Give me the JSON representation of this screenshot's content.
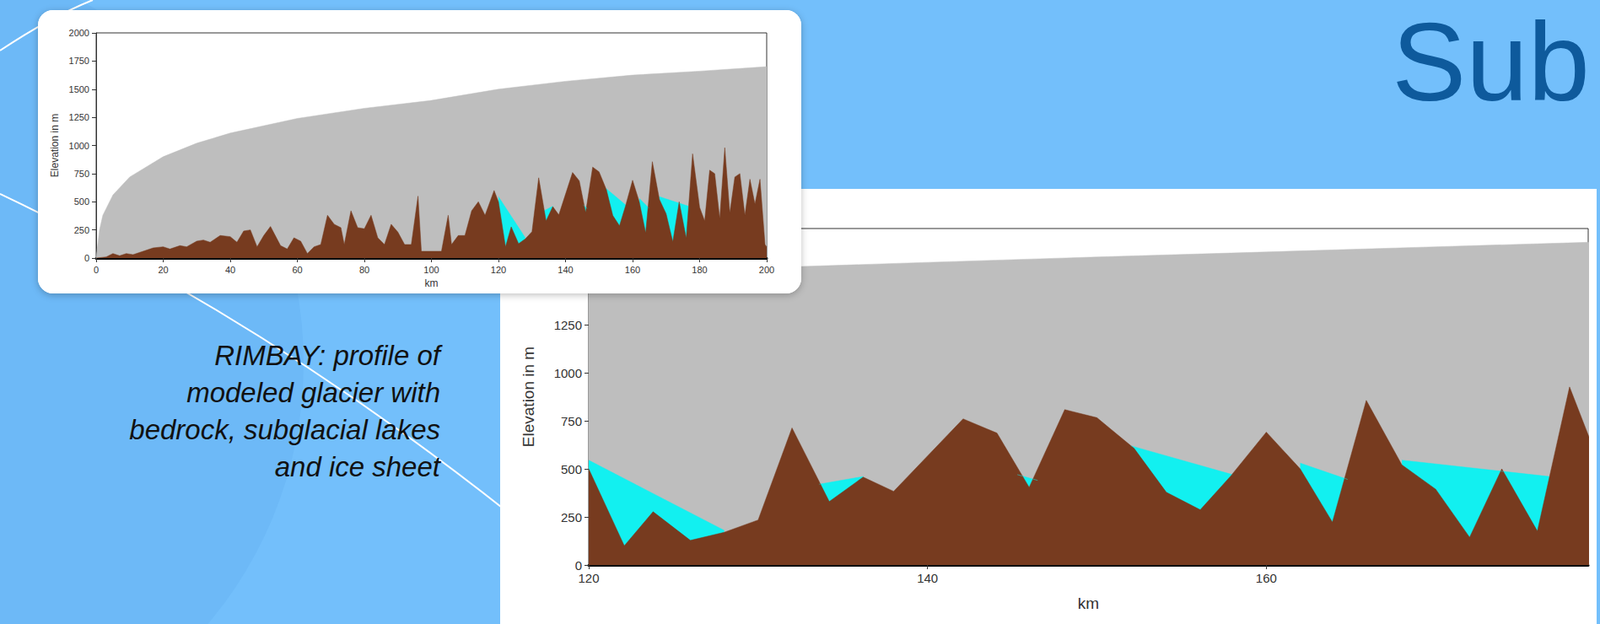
{
  "slide": {
    "title": "Sub",
    "caption": [
      "RIMBAY: profile of",
      "modeled glacier with",
      "bedrock, subglacial lakes",
      "and ice sheet"
    ]
  },
  "chart_data": [
    {
      "type": "area",
      "x_label": "km",
      "y_label": "Elevation in m",
      "xlim": [
        0,
        200
      ],
      "xticks": [
        0,
        20,
        40,
        60,
        80,
        100,
        120,
        140,
        160,
        180,
        200
      ],
      "ylim": [
        0,
        2000
      ],
      "yticks": [
        0,
        250,
        500,
        750,
        1000,
        1250,
        1500,
        1750,
        2000
      ],
      "series": [
        {
          "color": "#bebebe",
          "x": [
            0,
            1,
            2,
            5,
            10,
            20,
            30,
            40,
            60,
            80,
            100,
            120,
            140,
            160,
            180,
            200
          ],
          "values": [
            0,
            250,
            380,
            560,
            720,
            900,
            1020,
            1110,
            1240,
            1330,
            1400,
            1500,
            1570,
            1625,
            1660,
            1700
          ]
        },
        {
          "color": "#12f0f0",
          "x": [
            120,
            128,
            128.5,
            133.6,
            136.2,
            136.5,
            145.3,
            146.5,
            147,
            152,
            158,
            158.5,
            162,
            164.8,
            165,
            168,
            176.7
          ],
          "values": [
            545,
            180,
            null,
            420,
            460,
            null,
            470,
            440,
            null,
            620,
            470,
            null,
            530,
            445,
            null,
            545,
            460
          ]
        },
        {
          "color": "#773b1f",
          "x": [
            0,
            3,
            5,
            7,
            9,
            11,
            14,
            17,
            20,
            22,
            25,
            27,
            30,
            32,
            34,
            37,
            40,
            42,
            44,
            46,
            48,
            50,
            52,
            55,
            57,
            59,
            61,
            63,
            65,
            67,
            69,
            71,
            73,
            74,
            76,
            78,
            80,
            82,
            84,
            86,
            88,
            90,
            92,
            94,
            96,
            97,
            103,
            105,
            106,
            108,
            110,
            112,
            114,
            116,
            118.7,
            120,
            122.1,
            123.8,
            126,
            128,
            130,
            132,
            134.2,
            136.2,
            138,
            142.1,
            144.1,
            146,
            148.1,
            150,
            152.2,
            154.1,
            156.1,
            157.9,
            160,
            162,
            163.9,
            165.9,
            168,
            170,
            172,
            173.9,
            176,
            177.9,
            180,
            181.5,
            183,
            184.5,
            186,
            187.5,
            189,
            190.5,
            192,
            193.5,
            195,
            196.5,
            198,
            199.5,
            200
          ],
          "values": [
            0,
            10,
            40,
            20,
            40,
            30,
            60,
            90,
            100,
            80,
            110,
            100,
            150,
            160,
            140,
            200,
            190,
            140,
            240,
            250,
            100,
            200,
            280,
            110,
            80,
            180,
            150,
            40,
            100,
            120,
            380,
            300,
            270,
            120,
            420,
            270,
            260,
            380,
            180,
            120,
            300,
            230,
            120,
            120,
            550,
            60,
            60,
            380,
            120,
            200,
            200,
            420,
            500,
            380,
            600,
            500,
            100,
            277,
            128,
            170,
            234,
            713,
            330,
            457,
            383,
            760,
            686,
            404,
            808,
            766,
            606,
            378,
            287,
            463,
            691,
            500,
            223,
            856,
            521,
            394,
            144,
            500,
            176,
            926,
            450,
            330,
            780,
            750,
            350,
            980,
            400,
            720,
            750,
            380,
            700,
            480,
            700,
            120,
            100
          ]
        }
      ]
    },
    {
      "type": "area",
      "x_label": "km",
      "y_label": "Elevation in m",
      "xlim": [
        120,
        179
      ],
      "xticks": [
        120,
        140,
        160
      ],
      "ylim": [
        0,
        1750
      ],
      "yticks": [
        0,
        250,
        500,
        750,
        1000,
        1250
      ],
      "series": [
        {
          "color": "#bebebe",
          "x": [
            120,
            130,
            140,
            150,
            160,
            170,
            180
          ],
          "values": [
            1511,
            1545,
            1574,
            1602,
            1628,
            1655,
            1681
          ]
        },
        {
          "color": "#12f0f0",
          "x": [
            120,
            128,
            128.5,
            133.6,
            136.2,
            136.5,
            145.3,
            146.5,
            147,
            152,
            158,
            158.5,
            162,
            164.8,
            165,
            168,
            176.7
          ],
          "values": [
            545,
            180,
            null,
            420,
            460,
            null,
            470,
            440,
            null,
            620,
            470,
            null,
            530,
            445,
            null,
            545,
            460
          ]
        },
        {
          "color": "#773b1f",
          "x": [
            120,
            122.1,
            123.8,
            126,
            128,
            130,
            132,
            134.2,
            136.2,
            138,
            142.1,
            144.1,
            146,
            148.1,
            150,
            152.2,
            154.1,
            156.1,
            157.9,
            160,
            162,
            163.9,
            165.9,
            168,
            170,
            172,
            173.9,
            176,
            177.9,
            180
          ],
          "values": [
            500,
            100,
            277,
            128,
            170,
            234,
            713,
            330,
            457,
            383,
            760,
            686,
            404,
            808,
            766,
            606,
            378,
            287,
            463,
            691,
            500,
            223,
            856,
            521,
            394,
            144,
            500,
            176,
            926,
            450
          ]
        }
      ]
    }
  ]
}
